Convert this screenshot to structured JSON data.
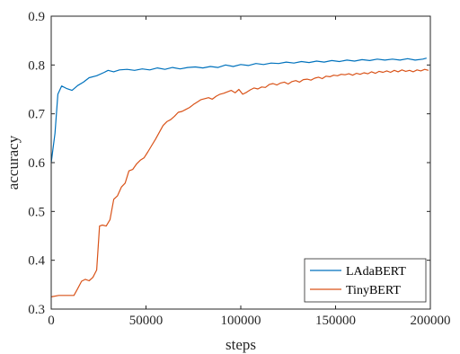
{
  "chart_data": {
    "type": "line",
    "xlabel": "steps",
    "ylabel": "accuracy",
    "xlim": [
      0,
      200000
    ],
    "ylim": [
      0.3,
      0.9
    ],
    "xticks": [
      0,
      50000,
      100000,
      150000,
      200000
    ],
    "xtick_labels": [
      "0",
      "50000",
      "100000",
      "150000",
      "200000"
    ],
    "yticks": [
      0.3,
      0.4,
      0.5,
      0.6,
      0.7,
      0.8,
      0.9
    ],
    "ytick_labels": [
      "0.3",
      "0.4",
      "0.5",
      "0.6",
      "0.7",
      "0.8",
      "0.9"
    ],
    "grid": false,
    "legend_position": "bottom-right",
    "series": [
      {
        "name": "LAdaBERT",
        "color": "#0072BD",
        "points": [
          [
            0,
            0.6
          ],
          [
            2000,
            0.66
          ],
          [
            3500,
            0.74
          ],
          [
            5500,
            0.757
          ],
          [
            8000,
            0.752
          ],
          [
            11000,
            0.748
          ],
          [
            14000,
            0.758
          ],
          [
            17000,
            0.765
          ],
          [
            20000,
            0.774
          ],
          [
            24000,
            0.778
          ],
          [
            28000,
            0.785
          ],
          [
            30000,
            0.789
          ],
          [
            33000,
            0.786
          ],
          [
            36000,
            0.79
          ],
          [
            40000,
            0.791
          ],
          [
            44000,
            0.789
          ],
          [
            48000,
            0.792
          ],
          [
            52000,
            0.79
          ],
          [
            56000,
            0.794
          ],
          [
            60000,
            0.791
          ],
          [
            64000,
            0.795
          ],
          [
            68000,
            0.792
          ],
          [
            72000,
            0.795
          ],
          [
            76000,
            0.796
          ],
          [
            80000,
            0.794
          ],
          [
            84000,
            0.797
          ],
          [
            88000,
            0.795
          ],
          [
            92000,
            0.8
          ],
          [
            96000,
            0.797
          ],
          [
            100000,
            0.801
          ],
          [
            104000,
            0.799
          ],
          [
            108000,
            0.803
          ],
          [
            112000,
            0.801
          ],
          [
            116000,
            0.804
          ],
          [
            120000,
            0.803
          ],
          [
            124000,
            0.806
          ],
          [
            128000,
            0.804
          ],
          [
            132000,
            0.807
          ],
          [
            136000,
            0.805
          ],
          [
            140000,
            0.808
          ],
          [
            144000,
            0.806
          ],
          [
            148000,
            0.809
          ],
          [
            152000,
            0.807
          ],
          [
            156000,
            0.81
          ],
          [
            160000,
            0.808
          ],
          [
            164000,
            0.811
          ],
          [
            168000,
            0.809
          ],
          [
            172000,
            0.812
          ],
          [
            176000,
            0.81
          ],
          [
            180000,
            0.812
          ],
          [
            184000,
            0.81
          ],
          [
            188000,
            0.813
          ],
          [
            192000,
            0.81
          ],
          [
            196000,
            0.812
          ],
          [
            198000,
            0.814
          ]
        ]
      },
      {
        "name": "TinyBERT",
        "color": "#D95319",
        "points": [
          [
            0,
            0.325
          ],
          [
            4000,
            0.328
          ],
          [
            8000,
            0.328
          ],
          [
            12000,
            0.328
          ],
          [
            14000,
            0.342
          ],
          [
            16000,
            0.357
          ],
          [
            18000,
            0.361
          ],
          [
            20000,
            0.358
          ],
          [
            22000,
            0.365
          ],
          [
            24000,
            0.38
          ],
          [
            25500,
            0.47
          ],
          [
            27000,
            0.472
          ],
          [
            29000,
            0.47
          ],
          [
            31000,
            0.483
          ],
          [
            33000,
            0.525
          ],
          [
            35000,
            0.532
          ],
          [
            37000,
            0.55
          ],
          [
            39000,
            0.558
          ],
          [
            41000,
            0.583
          ],
          [
            43000,
            0.586
          ],
          [
            45000,
            0.597
          ],
          [
            47000,
            0.605
          ],
          [
            49000,
            0.61
          ],
          [
            51000,
            0.622
          ],
          [
            53000,
            0.635
          ],
          [
            55000,
            0.648
          ],
          [
            57000,
            0.662
          ],
          [
            59000,
            0.676
          ],
          [
            61000,
            0.684
          ],
          [
            63000,
            0.688
          ],
          [
            65000,
            0.695
          ],
          [
            67000,
            0.703
          ],
          [
            69000,
            0.705
          ],
          [
            71000,
            0.709
          ],
          [
            73000,
            0.713
          ],
          [
            75000,
            0.719
          ],
          [
            77000,
            0.724
          ],
          [
            79000,
            0.729
          ],
          [
            81000,
            0.731
          ],
          [
            83000,
            0.733
          ],
          [
            85000,
            0.73
          ],
          [
            87000,
            0.736
          ],
          [
            89000,
            0.74
          ],
          [
            91000,
            0.742
          ],
          [
            93000,
            0.745
          ],
          [
            95000,
            0.748
          ],
          [
            97000,
            0.743
          ],
          [
            99000,
            0.75
          ],
          [
            101000,
            0.74
          ],
          [
            103000,
            0.744
          ],
          [
            105000,
            0.749
          ],
          [
            107000,
            0.753
          ],
          [
            109000,
            0.751
          ],
          [
            111000,
            0.755
          ],
          [
            113000,
            0.754
          ],
          [
            115000,
            0.76
          ],
          [
            117000,
            0.762
          ],
          [
            119000,
            0.759
          ],
          [
            121000,
            0.763
          ],
          [
            123000,
            0.765
          ],
          [
            125000,
            0.761
          ],
          [
            127000,
            0.766
          ],
          [
            129000,
            0.768
          ],
          [
            131000,
            0.765
          ],
          [
            133000,
            0.77
          ],
          [
            135000,
            0.771
          ],
          [
            137000,
            0.769
          ],
          [
            139000,
            0.773
          ],
          [
            141000,
            0.775
          ],
          [
            143000,
            0.772
          ],
          [
            145000,
            0.777
          ],
          [
            147000,
            0.776
          ],
          [
            149000,
            0.779
          ],
          [
            151000,
            0.778
          ],
          [
            153000,
            0.781
          ],
          [
            155000,
            0.78
          ],
          [
            157000,
            0.782
          ],
          [
            159000,
            0.779
          ],
          [
            161000,
            0.783
          ],
          [
            163000,
            0.781
          ],
          [
            165000,
            0.784
          ],
          [
            167000,
            0.782
          ],
          [
            169000,
            0.786
          ],
          [
            171000,
            0.783
          ],
          [
            173000,
            0.787
          ],
          [
            175000,
            0.785
          ],
          [
            177000,
            0.788
          ],
          [
            179000,
            0.785
          ],
          [
            181000,
            0.789
          ],
          [
            183000,
            0.786
          ],
          [
            185000,
            0.79
          ],
          [
            187000,
            0.787
          ],
          [
            189000,
            0.789
          ],
          [
            191000,
            0.786
          ],
          [
            193000,
            0.79
          ],
          [
            195000,
            0.788
          ],
          [
            197000,
            0.791
          ],
          [
            199000,
            0.789
          ]
        ]
      }
    ]
  }
}
